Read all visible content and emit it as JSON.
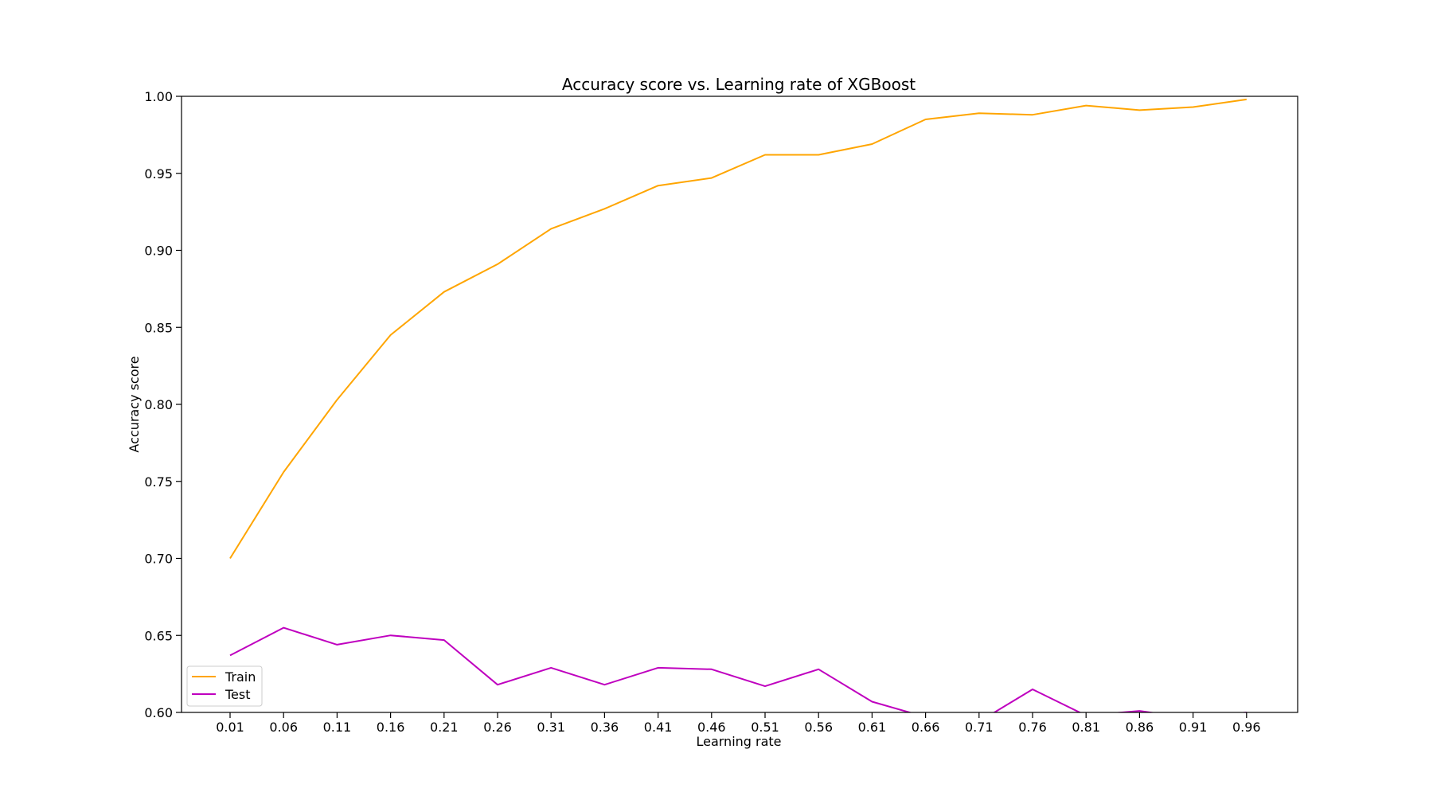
{
  "chart_data": {
    "type": "line",
    "title": "Accuracy score vs. Learning rate of XGBoost",
    "xlabel": "Learning rate",
    "ylabel": "Accuracy score",
    "categories": [
      "0.01",
      "0.06",
      "0.11",
      "0.16",
      "0.21",
      "0.26",
      "0.31",
      "0.36",
      "0.41",
      "0.46",
      "0.51",
      "0.56",
      "0.61",
      "0.66",
      "0.71",
      "0.76",
      "0.81",
      "0.86",
      "0.91",
      "0.96"
    ],
    "ylim": [
      0.6,
      1.0
    ],
    "yticks": [
      "0.60",
      "0.65",
      "0.70",
      "0.75",
      "0.80",
      "0.85",
      "0.90",
      "0.95",
      "1.00"
    ],
    "grid": false,
    "legend_position": "lower-left",
    "series": [
      {
        "name": "Train",
        "color": "#ffa500",
        "values": [
          0.7,
          0.756,
          0.803,
          0.845,
          0.873,
          0.891,
          0.914,
          0.927,
          0.942,
          0.947,
          0.962,
          0.962,
          0.969,
          0.985,
          0.989,
          0.988,
          0.994,
          0.991,
          0.993,
          0.998
        ]
      },
      {
        "name": "Test",
        "color": "#bf00bf",
        "values": [
          0.637,
          0.655,
          0.644,
          0.65,
          0.647,
          0.618,
          0.629,
          0.618,
          0.629,
          0.628,
          0.617,
          0.628,
          0.607,
          0.597,
          0.594,
          0.615,
          0.598,
          0.601,
          0.596,
          0.6
        ]
      }
    ]
  }
}
